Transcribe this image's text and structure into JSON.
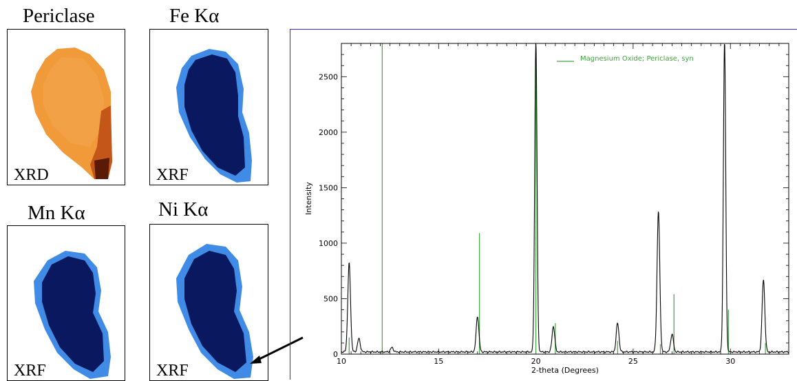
{
  "maps": [
    {
      "title": "Periclase",
      "tag": "XRD",
      "color": "#e8862a",
      "dark": "#5a1a05",
      "icon": "periclase-map"
    },
    {
      "title": "Fe Kα",
      "tag": "XRF",
      "color": "#0a1860",
      "dark": "#08124a",
      "icon": "fe-map"
    },
    {
      "title": "Mn Kα",
      "tag": "XRF",
      "color": "#0a1860",
      "dark": "#08124a",
      "icon": "mn-map"
    },
    {
      "title": "Ni Kα",
      "tag": "XRF",
      "color": "#0a1860",
      "dark": "#08124a",
      "icon": "ni-map"
    }
  ],
  "chart_data": {
    "type": "line",
    "title": "",
    "xlabel": "2-theta (Degrees)",
    "ylabel": "Intensity",
    "xlim": [
      10,
      33
    ],
    "ylim": [
      0,
      2800
    ],
    "xticks": [
      10,
      15,
      20,
      25,
      30
    ],
    "yticks": [
      0,
      500,
      1000,
      1500,
      2000,
      2500
    ],
    "grid": false,
    "legend_position": "top",
    "series": [
      {
        "name": "",
        "color": "#000000",
        "peaks": [
          {
            "x": 10.4,
            "y": 800
          },
          {
            "x": 10.9,
            "y": 120
          },
          {
            "x": 12.6,
            "y": 40
          },
          {
            "x": 17.0,
            "y": 320
          },
          {
            "x": 20.0,
            "y": 2800
          },
          {
            "x": 20.9,
            "y": 230
          },
          {
            "x": 24.2,
            "y": 260
          },
          {
            "x": 26.3,
            "y": 1270
          },
          {
            "x": 27.0,
            "y": 160
          },
          {
            "x": 29.7,
            "y": 2800
          },
          {
            "x": 31.7,
            "y": 650
          }
        ],
        "baseline": 20
      },
      {
        "name": "Magnesium Oxide; Periclase, syn",
        "color": "#3ea33e",
        "sticks": [
          {
            "x": 10.4,
            "y": 150
          },
          {
            "x": 12.1,
            "y": 2800
          },
          {
            "x": 17.1,
            "y": 1090
          },
          {
            "x": 20.0,
            "y": 2800
          },
          {
            "x": 21.0,
            "y": 280
          },
          {
            "x": 24.2,
            "y": 120
          },
          {
            "x": 26.4,
            "y": 90
          },
          {
            "x": 27.1,
            "y": 540
          },
          {
            "x": 29.9,
            "y": 400
          },
          {
            "x": 31.8,
            "y": 100
          }
        ]
      }
    ]
  }
}
